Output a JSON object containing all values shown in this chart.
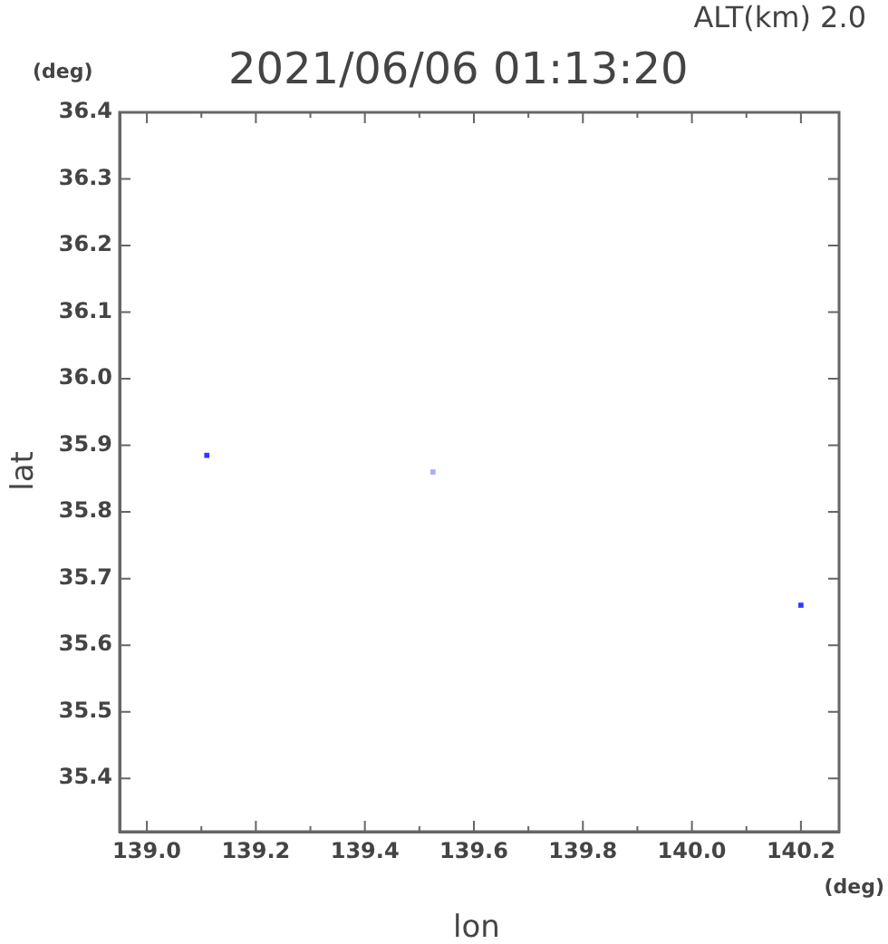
{
  "chart_data": {
    "type": "scatter",
    "title": "2021/06/06 01:13:20",
    "subtitle": "ALT(km) 2.0",
    "xlabel": "lon",
    "ylabel": "lat",
    "annotations": [
      "(deg)",
      "(deg)"
    ],
    "series": [
      {
        "x": [
          139.11,
          139.525,
          140.2
        ],
        "values": [
          35.885,
          35.86,
          35.66
        ],
        "colors": [
          "#3333ff",
          "#aaaaff",
          "#3333ff"
        ]
      }
    ],
    "xlim": [
      138.95,
      140.27
    ],
    "ylim": [
      35.32,
      36.4
    ],
    "xticks": [
      {
        "value": 139.0,
        "label": "139.0"
      },
      {
        "value": 139.1,
        "label": null
      },
      {
        "value": 139.2,
        "label": "139.2"
      },
      {
        "value": 139.3,
        "label": null
      },
      {
        "value": 139.4,
        "label": "139.4"
      },
      {
        "value": 139.5,
        "label": null
      },
      {
        "value": 139.6,
        "label": "139.6"
      },
      {
        "value": 139.7,
        "label": null
      },
      {
        "value": 139.8,
        "label": "139.8"
      },
      {
        "value": 139.9,
        "label": null
      },
      {
        "value": 140.0,
        "label": "140.0"
      },
      {
        "value": 140.1,
        "label": null
      },
      {
        "value": 140.2,
        "label": "140.2"
      }
    ],
    "yticks": [
      {
        "value": 35.4,
        "label": "35.4"
      },
      {
        "value": 35.5,
        "label": "35.5"
      },
      {
        "value": 35.6,
        "label": "35.6"
      },
      {
        "value": 35.7,
        "label": "35.7"
      },
      {
        "value": 35.8,
        "label": "35.8"
      },
      {
        "value": 35.9,
        "label": "35.9"
      },
      {
        "value": 36.0,
        "label": "36.0"
      },
      {
        "value": 36.1,
        "label": "36.1"
      },
      {
        "value": 36.2,
        "label": "36.2"
      },
      {
        "value": 36.3,
        "label": "36.3"
      },
      {
        "value": 36.4,
        "label": "36.4"
      }
    ],
    "grid": false,
    "legend": false,
    "marker": "square"
  }
}
